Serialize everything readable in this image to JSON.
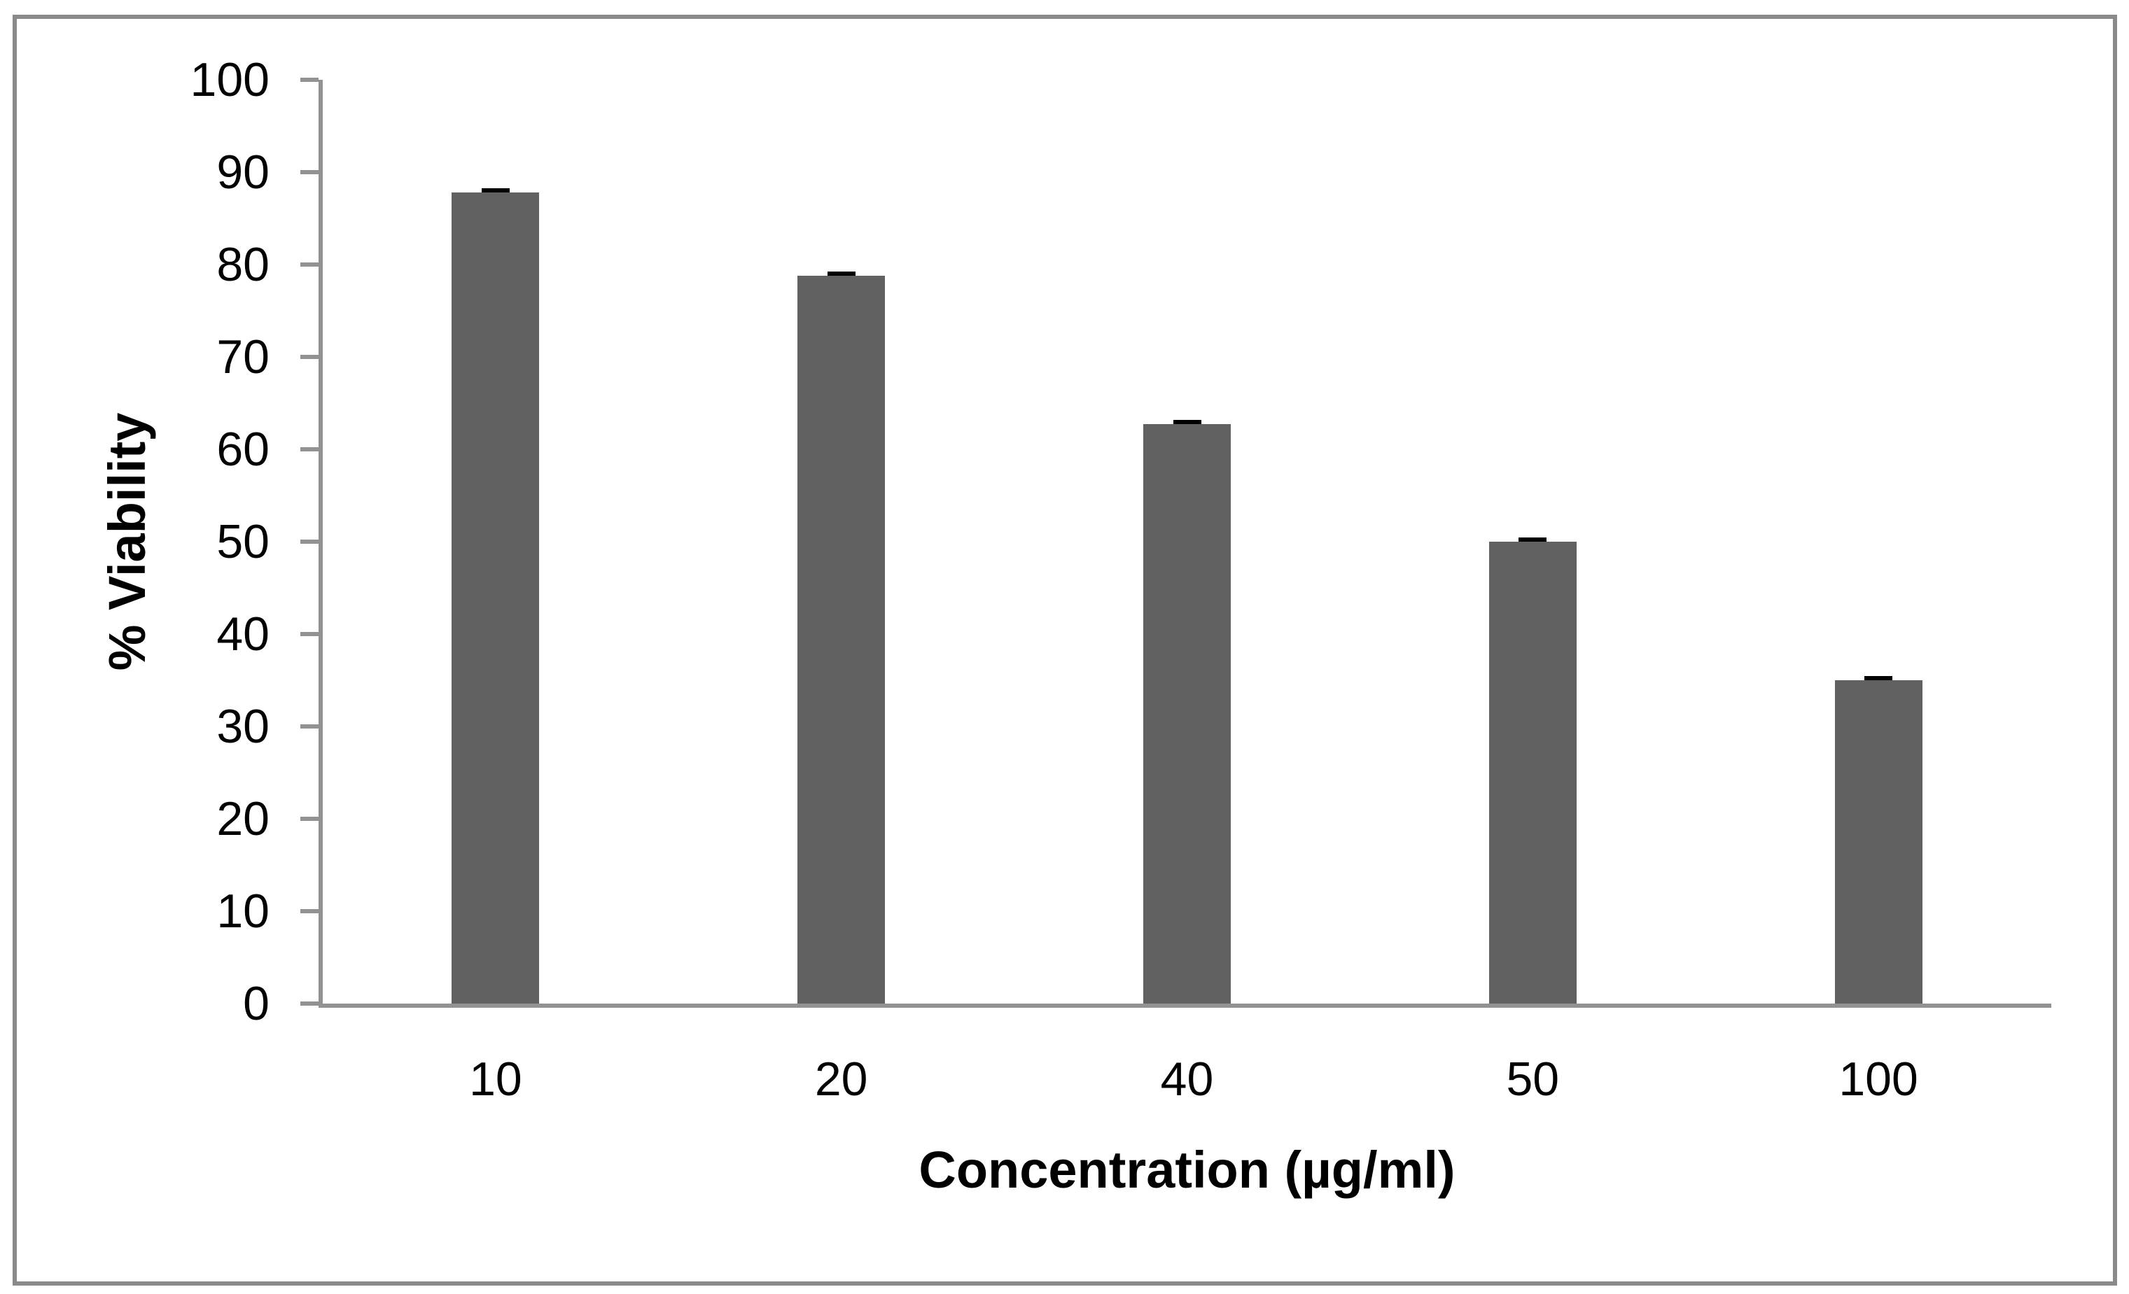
{
  "chart_data": {
    "type": "bar",
    "title": "",
    "xlabel": "Concentration (µg/ml)",
    "ylabel": "% Viability",
    "categories": [
      "10",
      "20",
      "40",
      "50",
      "100"
    ],
    "values": [
      87.8,
      78.8,
      62.7,
      50.0,
      35.0
    ],
    "error_caps": [
      0.4,
      0.4,
      0.4,
      0.4,
      0.4
    ],
    "ylim": [
      0,
      100
    ],
    "y_tick_step": 10,
    "y_tick_labels": [
      "0",
      "10",
      "20",
      "30",
      "40",
      "50",
      "60",
      "70",
      "80",
      "90",
      "100"
    ],
    "grid": false,
    "legend": false,
    "colors": {
      "bar": "#616161",
      "error": "#000000",
      "axis": "#929292",
      "frame": "#8a8a8a",
      "text": "#000000",
      "background": "#ffffff"
    }
  }
}
